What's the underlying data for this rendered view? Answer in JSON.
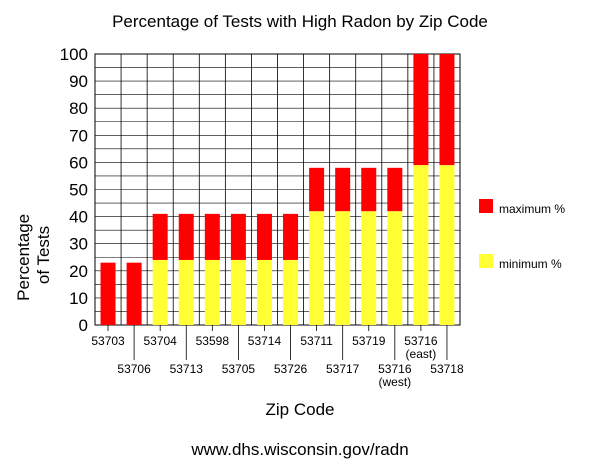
{
  "chart_data": {
    "type": "bar",
    "stacked": true,
    "title": "Percentage of Tests with High Radon by Zip Code",
    "xlabel": "Zip Code",
    "ylabel": [
      "Percentage",
      "of Tests"
    ],
    "ylim": [
      0,
      100
    ],
    "yticks": [
      0,
      10,
      20,
      30,
      40,
      50,
      60,
      70,
      80,
      90,
      100
    ],
    "grid": true,
    "legend_position": "right",
    "categories": [
      [
        "53703"
      ],
      [
        "53706"
      ],
      [
        "53704"
      ],
      [
        "53713"
      ],
      [
        "53598"
      ],
      [
        "53705"
      ],
      [
        "53714"
      ],
      [
        "53726"
      ],
      [
        "53711"
      ],
      [
        "53717"
      ],
      [
        "53719"
      ],
      [
        "53716",
        "(west)"
      ],
      [
        "53716",
        "(east)"
      ],
      [
        "53718"
      ]
    ],
    "series": [
      {
        "name": "minimum %",
        "color": "#ffff33",
        "values": [
          0,
          0,
          24,
          24,
          24,
          24,
          24,
          24,
          42,
          42,
          42,
          42,
          59,
          59
        ]
      },
      {
        "name": "maximum %",
        "color": "#ff0000",
        "values": [
          23,
          23,
          17,
          17,
          17,
          17,
          17,
          17,
          16,
          16,
          16,
          16,
          41,
          41
        ]
      }
    ]
  },
  "source": "www.dhs.wisconsin.gov/radn"
}
